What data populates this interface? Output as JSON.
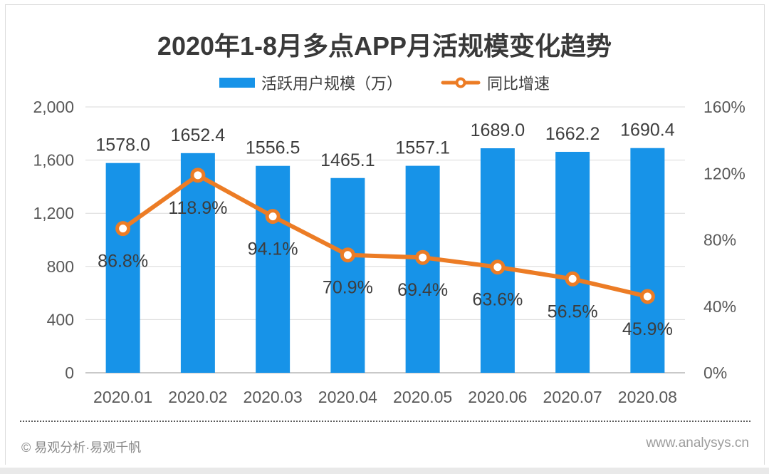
{
  "chart_data": {
    "type": "combo",
    "title": "2020年1-8月多点APP月活规模变化趋势",
    "categories": [
      "2020.01",
      "2020.02",
      "2020.03",
      "2020.04",
      "2020.05",
      "2020.06",
      "2020.07",
      "2020.08"
    ],
    "series": [
      {
        "name": "活跃用户规模（万）",
        "type": "bar",
        "axis": "left",
        "color": "#1793e8",
        "values": [
          1578.0,
          1652.4,
          1556.5,
          1465.1,
          1557.1,
          1689.0,
          1662.2,
          1690.4
        ],
        "labels": [
          "1578.0",
          "1652.4",
          "1556.5",
          "1465.1",
          "1557.1",
          "1689.0",
          "1662.2",
          "1690.4"
        ]
      },
      {
        "name": "同比增速",
        "type": "line",
        "axis": "right",
        "color": "#ec7c25",
        "values": [
          86.8,
          118.9,
          94.1,
          70.9,
          69.4,
          63.6,
          56.5,
          45.9
        ],
        "labels": [
          "86.8%",
          "118.9%",
          "94.1%",
          "70.9%",
          "69.4%",
          "63.6%",
          "56.5%",
          "45.9%"
        ]
      }
    ],
    "left_axis": {
      "min": 0,
      "max": 2000,
      "tick_values": [
        0,
        400,
        800,
        1200,
        1600,
        2000
      ],
      "tick_labels": [
        "0",
        "400",
        "800",
        "1,200",
        "1,600",
        "2,000"
      ]
    },
    "right_axis": {
      "min": 0,
      "max": 160,
      "tick_values": [
        0,
        40,
        80,
        120,
        160
      ],
      "tick_labels": [
        "0%",
        "40%",
        "80%",
        "120%",
        "160%"
      ]
    },
    "grid": true,
    "legend_position": "top"
  },
  "colors": {
    "bar": "#1793e8",
    "line": "#ec7c25",
    "gridline": "#dadada",
    "axis_line": "#c9c9c9",
    "data_label": "#3d3d3d",
    "axis_text": "#595959"
  },
  "footer": {
    "copyright": "© 易观分析·易观千帆",
    "website": "www.analysys.cn"
  }
}
